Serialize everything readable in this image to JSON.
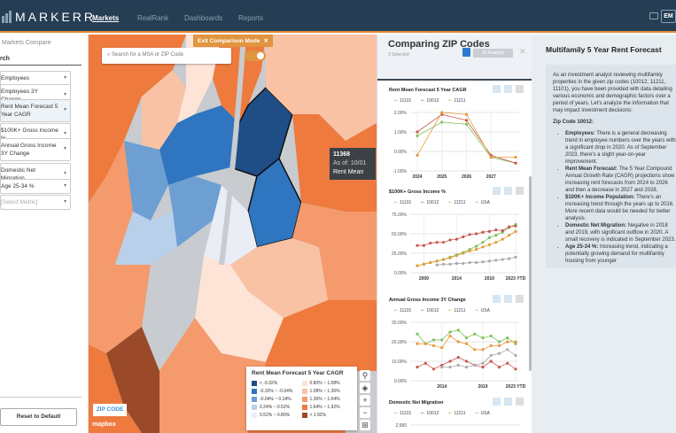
{
  "header": {
    "logo": "MARKERR",
    "nav": [
      "Markets",
      "RealRank",
      "Dashboards",
      "Reports"
    ],
    "avatar": "EM"
  },
  "sidebar": {
    "breadcrumb": "Markets  Compare",
    "search_label": "rch",
    "metrics": [
      "Employees",
      "Employees 3Y Change",
      "Rent Mean Forecast 5 Year CAGR",
      "$100K+ Gross Income %",
      "Annual Gross Income 3Y Change",
      "Domestic Net Migration",
      "Age 25-34 %",
      "[Select Metric]"
    ],
    "reset": "Reset to Default"
  },
  "map": {
    "exit_label": "Exit Comparison Mode",
    "search_placeholder": "Search for a MSA or ZIP Code",
    "tooltip": {
      "zip": "11368",
      "asof": "As of: 10/01",
      "metric": "Rent Mean"
    },
    "legend": {
      "title": "Rent Mean Forecast 5 Year CAGR",
      "items": [
        {
          "label": "< -0.32%",
          "color": "#1f4e86"
        },
        {
          "label": "0.80% ~ 1.08%",
          "color": "#fde4d6"
        },
        {
          "label": "-0.32% ~ -0.04%",
          "color": "#2f75bf"
        },
        {
          "label": "1.08% ~ 1.36%",
          "color": "#f9c2a5"
        },
        {
          "label": "-0.04% ~ 0.24%",
          "color": "#6e9fd3"
        },
        {
          "label": "1.36% ~ 1.64%",
          "color": "#f49a6c"
        },
        {
          "label": "0.24% ~ 0.52%",
          "color": "#b8d0ea"
        },
        {
          "label": "1.64% ~ 1.92%",
          "color": "#ee7a3e"
        },
        {
          "label": "0.52% ~ 0.80%",
          "color": "#e9eef6"
        },
        {
          "label": "> 1.92%",
          "color": "#9a4a28"
        }
      ]
    },
    "zip_button": "ZIP CODE",
    "attribution": "mapbox"
  },
  "compare": {
    "title": "Comparing ZIP Codes",
    "subtitle": "3 Selected",
    "ai_label": "AI Analyst"
  },
  "chart_data": [
    {
      "type": "line",
      "title": "Rent Mean Forecast 5 Year CAGR",
      "x": [
        2024,
        2025,
        2026,
        2027,
        2028
      ],
      "xticks": [
        "2024",
        "2025",
        "2026",
        "2027"
      ],
      "yticks": [
        "2.00%",
        "1.00%",
        "0.00%",
        "-1.00%"
      ],
      "ylim": [
        -1,
        2
      ],
      "series": [
        {
          "name": "11101",
          "color": "#7cc35a",
          "values": [
            0.8,
            1.5,
            1.4,
            -0.3,
            -0.6
          ]
        },
        {
          "name": "10012",
          "color": "#c9574f",
          "values": [
            1.0,
            1.9,
            1.6,
            -0.2,
            -0.6
          ]
        },
        {
          "name": "11211",
          "color": "#e39a3a",
          "values": [
            -0.2,
            2.0,
            1.9,
            -0.3,
            -0.3
          ]
        }
      ]
    },
    {
      "type": "line",
      "title": "$100K+ Gross Income %",
      "x": [
        2008,
        2009,
        2010,
        2011,
        2012,
        2013,
        2014,
        2015,
        2016,
        2017,
        2018,
        2019,
        2020,
        2021,
        2022,
        2023
      ],
      "xticks": [
        "2009",
        "2014",
        "2019",
        "2023 YTD"
      ],
      "yticks": [
        "75.00%",
        "50.00%",
        "25.00%",
        "0.00%"
      ],
      "ylim": [
        0,
        75
      ],
      "series": [
        {
          "name": "11101",
          "color": "#7cc35a",
          "values": [
            9,
            11,
            13,
            15,
            17,
            20,
            23,
            26,
            30,
            34,
            39,
            45,
            48,
            52,
            58,
            62
          ]
        },
        {
          "name": "10012",
          "color": "#c9574f",
          "values": [
            35,
            35,
            38,
            39,
            39,
            42,
            43,
            46,
            49,
            50,
            52,
            53,
            55,
            54,
            59,
            60
          ]
        },
        {
          "name": "11211",
          "color": "#e39a3a",
          "values": [
            9,
            11,
            13,
            15,
            17,
            19,
            22,
            25,
            28,
            30,
            33,
            36,
            39,
            43,
            48,
            53
          ]
        },
        {
          "name": "USA",
          "color": "#aaaaaa",
          "values": [
            null,
            null,
            null,
            10,
            11,
            11,
            12,
            12,
            13,
            13,
            14,
            15,
            16,
            17,
            18,
            20
          ]
        }
      ]
    },
    {
      "type": "line",
      "title": "Annual Gross Income 3Y Change",
      "x": [
        2011,
        2012,
        2013,
        2014,
        2015,
        2016,
        2017,
        2018,
        2019,
        2020,
        2021,
        2022,
        2023
      ],
      "xticks": [
        "2014",
        "2019",
        "2023 YTD"
      ],
      "yticks": [
        "30.00%",
        "20.00%",
        "10.00%",
        "0.00%"
      ],
      "ylim": [
        0,
        30
      ],
      "series": [
        {
          "name": "11101",
          "color": "#7cc35a",
          "values": [
            24,
            19,
            21,
            21,
            25,
            26,
            22,
            24,
            22,
            23,
            20,
            22,
            19
          ]
        },
        {
          "name": "10012",
          "color": "#c9574f",
          "values": [
            7,
            9,
            6,
            8,
            10,
            12,
            10,
            8,
            7,
            10,
            7,
            9,
            6
          ]
        },
        {
          "name": "11211",
          "color": "#e39a3a",
          "values": [
            19,
            19,
            18,
            17,
            23,
            20,
            19,
            16,
            16,
            18,
            18,
            20,
            20
          ]
        },
        {
          "name": "USA",
          "color": "#aaaaaa",
          "values": [
            null,
            null,
            null,
            7,
            7,
            8,
            7,
            8,
            9,
            13,
            14,
            16,
            13
          ]
        }
      ]
    },
    {
      "type": "line",
      "title": "Domestic Net Migration",
      "x": [],
      "xticks": [],
      "yticks": [
        "2,580"
      ],
      "ylim": [
        0,
        2580
      ],
      "series": [
        {
          "name": "11101",
          "color": "#7cc35a",
          "values": []
        },
        {
          "name": "10012",
          "color": "#c9574f",
          "values": []
        },
        {
          "name": "11211",
          "color": "#e39a3a",
          "values": []
        },
        {
          "name": "USA",
          "color": "#aaaaaa",
          "values": []
        }
      ]
    }
  ],
  "analysis": {
    "title": "Multifamily 5 Year Rent Forecast",
    "intro": "As an investment analyst reviewing multifamily properties in the given zip codes (10012, 11211, 11101), you have been provided with data detailing various economic and demographic factors over a period of years. Let's analyze the information that may impact investment decisions:",
    "zip_heading": "Zip Code 10012:",
    "bullets": [
      {
        "label": "Employees:",
        "text": " There is a general decreasing trend in employee numbers over the years with a significant drop in 2020. As of September 2023, there's a slight year-on-year improvement."
      },
      {
        "label": "Rent Mean Forecast:",
        "text": " The 5 Year Compound Annual Growth Rate (CAGR) projections show increasing rent forecasts from 2024 to 2026 and then a decrease in 2027 and 2028."
      },
      {
        "label": "$100K+ Income Population:",
        "text": " There's an increasing trend through the years up to 2016. More recent data would be needed for better analysis."
      },
      {
        "label": "Domestic Net Migration:",
        "text": " Negative in 2018 and 2019, with significant outflow in 2020. A small recovery is indicated in September 2023."
      },
      {
        "label": "Age 25-34 %:",
        "text": " Increasing trend, indicating a potentially growing demand for multifamily housing from younger"
      }
    ]
  }
}
